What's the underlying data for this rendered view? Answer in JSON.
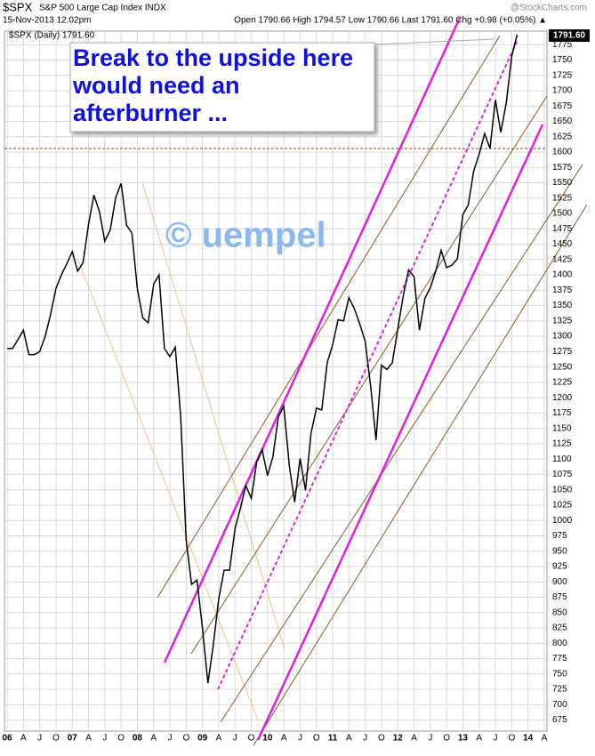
{
  "chart_data": {
    "type": "line",
    "title": "$SPX",
    "subtitle": "S&P 500 Large Cap Index INDX",
    "timestamp": "15-Nov-2013 12:02pm",
    "quote": "Open 1790.66  High 1794.57  Low 1790.66  Last 1791.60  Chg +0.98 (+0.05%) ▲",
    "source": "@StockCharts.com",
    "last_label": "1791.60",
    "annotation": "Break to the upside here would need an afterburner ...",
    "watermark": "© uempel",
    "categories": [
      "06",
      null,
      null,
      "A",
      null,
      null,
      "J",
      null,
      null,
      "O",
      null,
      null,
      "07",
      null,
      null,
      "A",
      null,
      null,
      "J",
      null,
      null,
      "O",
      null,
      null,
      "08",
      null,
      null,
      "A",
      null,
      null,
      "J",
      null,
      null,
      "O",
      null,
      null,
      "09",
      null,
      null,
      "A",
      null,
      null,
      "J",
      null,
      null,
      "O",
      null,
      null,
      "10",
      null,
      null,
      "A",
      null,
      null,
      "J",
      null,
      null,
      "O",
      null,
      null,
      "11",
      null,
      null,
      "A",
      null,
      null,
      "J",
      null,
      null,
      "O",
      null,
      null,
      "12",
      null,
      null,
      "A",
      null,
      null,
      "J",
      null,
      null,
      "O",
      null,
      null,
      "13",
      null,
      null,
      "A",
      null,
      null,
      "J",
      null,
      null,
      "O",
      null,
      null,
      "14",
      null,
      null,
      "A"
    ],
    "series": [
      {
        "name": "$SPX (Daily) 1791.60",
        "color": "#000000",
        "values": [
          1280,
          1280,
          1295,
          1310,
          1270,
          1270,
          1275,
          1300,
          1335,
          1378,
          1400,
          1418,
          1438,
          1406,
          1420,
          1482,
          1530,
          1503,
          1455,
          1473,
          1526,
          1549,
          1481,
          1468,
          1378,
          1330,
          1322,
          1385,
          1400,
          1280,
          1267,
          1282,
          1166,
          968,
          896,
          903,
          825,
          735,
          797,
          872,
          919,
          919,
          987,
          1020,
          1057,
          1036,
          1095,
          1115,
          1073,
          1104,
          1169,
          1186,
          1089,
          1030,
          1101,
          1049,
          1141,
          1183,
          1180,
          1257,
          1286,
          1327,
          1325,
          1363,
          1345,
          1320,
          1292,
          1218,
          1131,
          1253,
          1246,
          1257,
          1312,
          1365,
          1408,
          1397,
          1310,
          1362,
          1379,
          1406,
          1440,
          1412,
          1416,
          1426,
          1498,
          1514,
          1569,
          1597,
          1630,
          1606,
          1685,
          1632,
          1681,
          1756,
          1791,
          null,
          null,
          null,
          null,
          null
        ]
      }
    ],
    "ylim": [
      657,
      1797
    ],
    "yticks": [
      675,
      700,
      725,
      750,
      775,
      800,
      825,
      850,
      875,
      900,
      925,
      950,
      975,
      1000,
      1025,
      1050,
      1075,
      1100,
      1125,
      1150,
      1175,
      1200,
      1225,
      1250,
      1275,
      1300,
      1325,
      1350,
      1375,
      1400,
      1425,
      1450,
      1475,
      1500,
      1525,
      1550,
      1575,
      1600,
      1625,
      1650,
      1675,
      1700,
      1725,
      1750,
      1775
    ],
    "grid": true
  }
}
